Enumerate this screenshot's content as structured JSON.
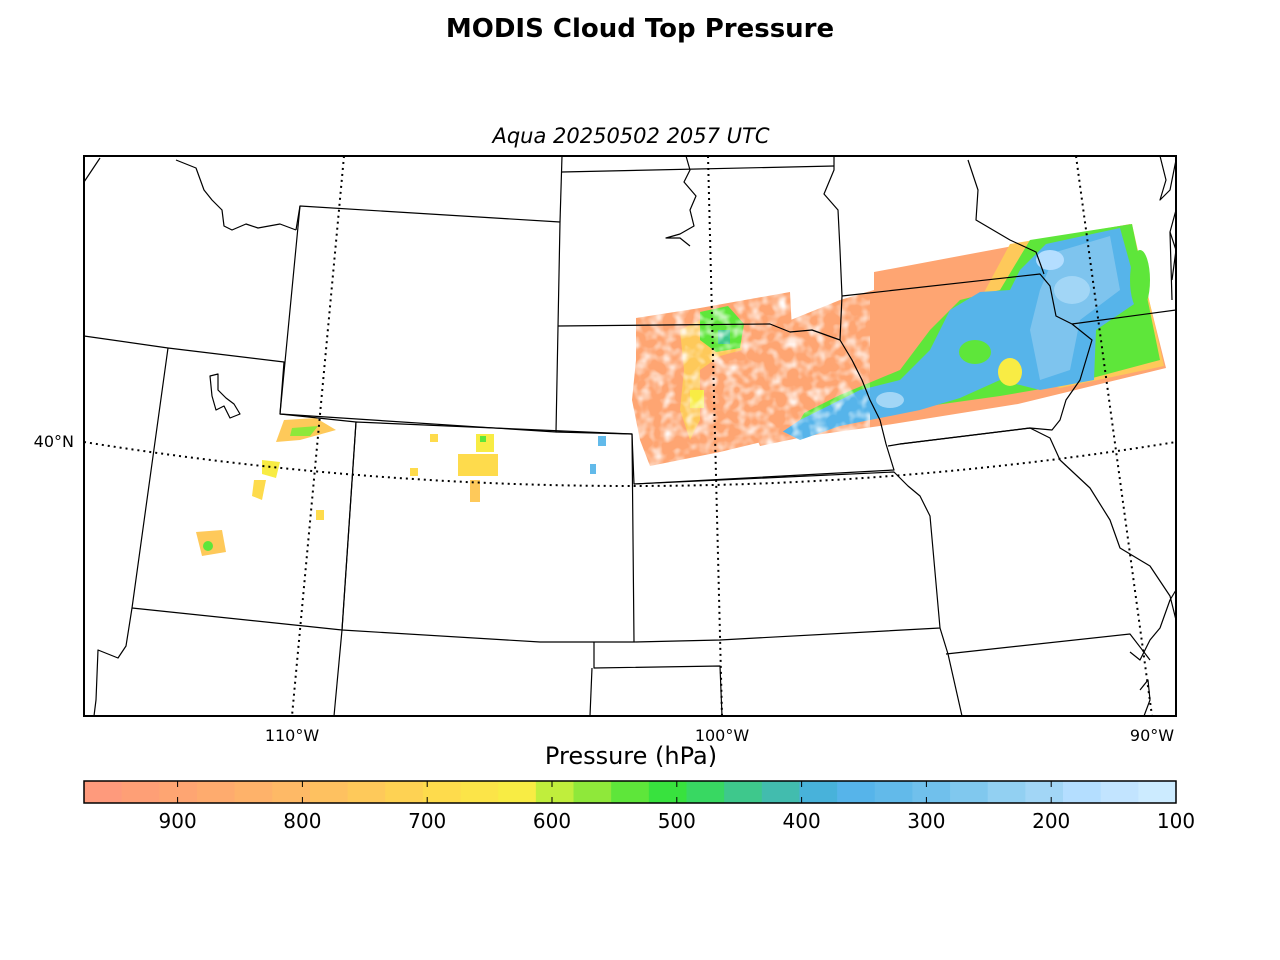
{
  "title": "MODIS Cloud Top Pressure",
  "subtitle": "Aqua 20250502 2057 UTC",
  "map": {
    "lat_labels": [
      {
        "text": "40°N"
      }
    ],
    "lon_labels": [
      {
        "text": "110°W"
      },
      {
        "text": "100°W"
      },
      {
        "text": "90°W"
      }
    ]
  },
  "colorbar": {
    "title": "Pressure (hPa)",
    "ticks": [
      "900",
      "800",
      "700",
      "600",
      "500",
      "400",
      "300",
      "200",
      "100"
    ],
    "colors": [
      "#fe9a7c",
      "#fe9f76",
      "#fea572",
      "#feab6e",
      "#feb26a",
      "#feb966",
      "#fec160",
      "#fec95a",
      "#fed253",
      "#fedb4c",
      "#fce448",
      "#f8ec44",
      "#c0ee3c",
      "#8fe83a",
      "#5ee63a",
      "#38e23e",
      "#38d862",
      "#3ec88c",
      "#42bcae",
      "#48b2da",
      "#56b4ea",
      "#62baea",
      "#70c0ec",
      "#80c8ee",
      "#92d0f2",
      "#a2d6f6",
      "#b4deff",
      "#c2e4ff",
      "#ccebff"
    ],
    "colors_note": ""
  },
  "cloud_palette": {
    "low": "#fea572",
    "mid_low": "#fec95a",
    "mid": "#f8ec44",
    "green": "#5ee63a",
    "teal": "#3ec88c",
    "blue": "#56b4ea",
    "light_blue": "#a2d6f6",
    "white": "#e8f4ff"
  }
}
